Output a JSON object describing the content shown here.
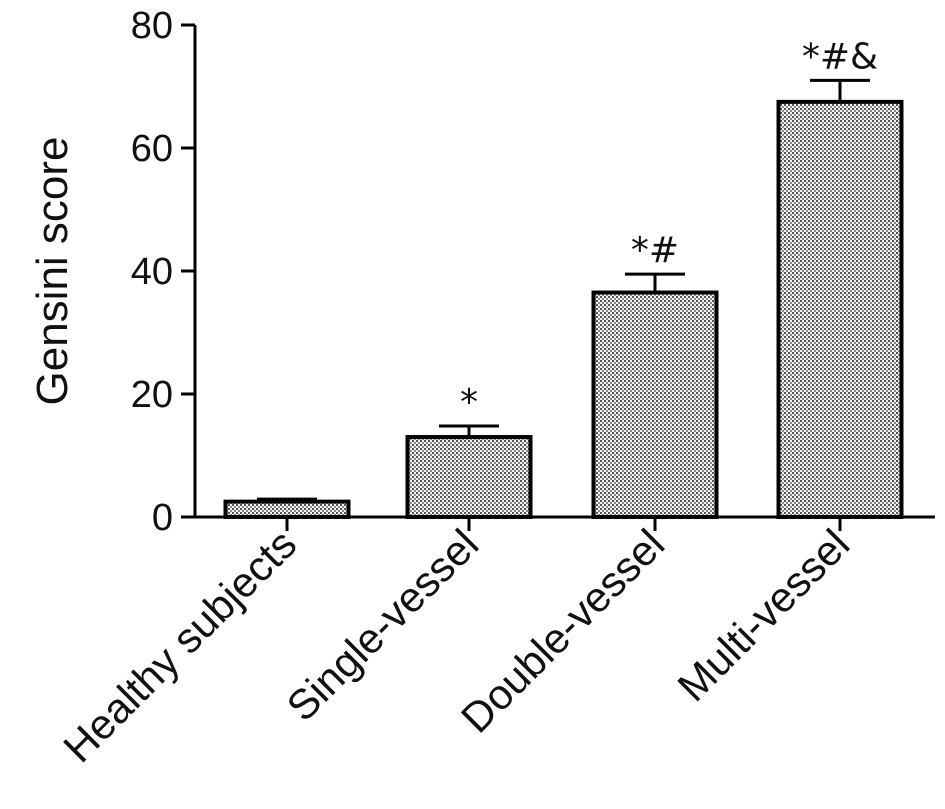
{
  "chart_data": {
    "type": "bar",
    "ylabel": "Gensini score",
    "xlabel": "",
    "ylim": [
      0,
      80
    ],
    "yticks": [
      0,
      20,
      40,
      60,
      80
    ],
    "categories": [
      "Healthy subjects",
      "Single-vessel",
      "Double-vessel",
      "Multi-vessel"
    ],
    "values": [
      2.5,
      13.0,
      36.5,
      67.5
    ],
    "errors": [
      0.4,
      1.8,
      3.0,
      3.5
    ],
    "annotations": [
      "",
      "*",
      "*#",
      "*#&"
    ],
    "bar_fill": "#bdbdbd",
    "bar_stroke": "#000000",
    "grid": false
  }
}
